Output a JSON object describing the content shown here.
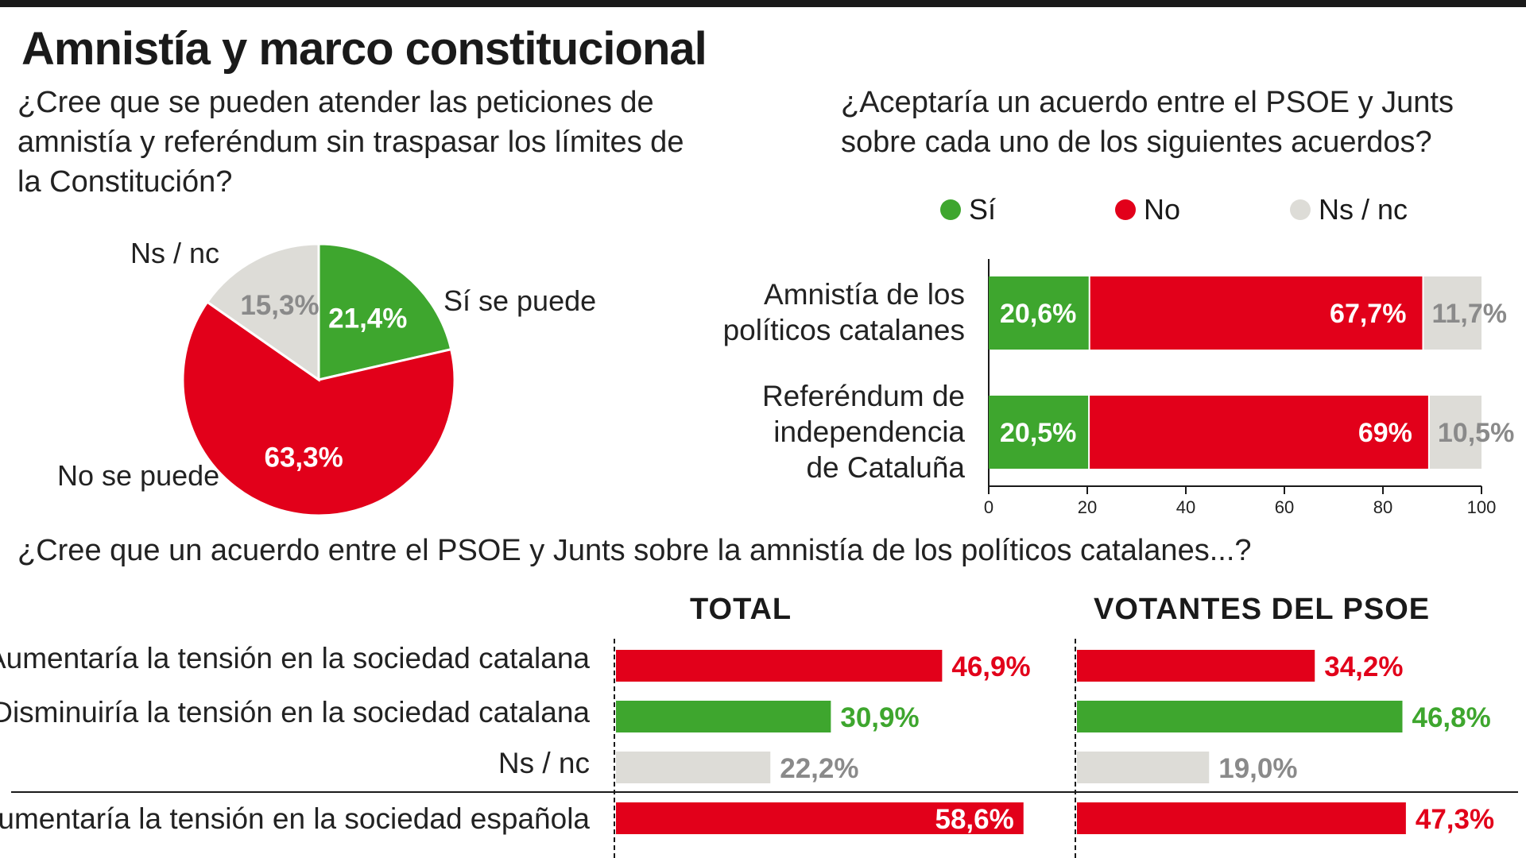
{
  "title": "Amnistía y marco constitucional",
  "colors": {
    "si": "#3ea62e",
    "no": "#e2001a",
    "nsnc": "#dddcd7",
    "nsnc_text": "#8a8a8a",
    "dark": "#1a1a1a"
  },
  "pie": {
    "question": "¿Cree que se pueden atender las peticiones de amnistía y referéndum sin traspasar los límites de la Constitución?",
    "labels": {
      "si": "Sí se puede",
      "no": "No se puede",
      "nsnc": "Ns / nc"
    }
  },
  "agreement": {
    "question": "¿Aceptaría un acuerdo entre el PSOE y Junts sobre cada uno de los siguientes acuerdos?",
    "legend": [
      "Sí",
      "No",
      "Ns / nc"
    ],
    "row_labels": [
      [
        "Amnistía de los",
        "políticos catalanes"
      ],
      [
        "Referéndum de",
        "independencia",
        "de Cataluña"
      ]
    ]
  },
  "tension": {
    "question": "¿Cree que un acuerdo entre el PSOE y Junts sobre la amnistía de los políticos catalanes...?",
    "headers": [
      "TOTAL",
      "VOTANTES DEL PSOE"
    ],
    "row_labels": [
      "Aumentaría la tensión en la sociedad catalana",
      "Disminuiría la tensión en la sociedad catalana",
      "Ns / nc",
      "Aumentaría la tensión en la sociedad española"
    ]
  },
  "chart_data": [
    {
      "type": "pie",
      "categories": [
        "Sí se puede",
        "No se puede",
        "Ns / nc"
      ],
      "values": [
        21.4,
        63.3,
        15.3
      ],
      "value_labels": [
        "21,4%",
        "63,3%",
        "15,3%"
      ]
    },
    {
      "type": "bar",
      "orientation": "horizontal",
      "stacked": true,
      "categories": [
        "Amnistía de los políticos catalanes",
        "Referéndum de independencia de Cataluña"
      ],
      "series": [
        {
          "name": "Sí",
          "values": [
            20.6,
            20.5
          ],
          "value_labels": [
            "20,6%",
            "20,5%"
          ]
        },
        {
          "name": "No",
          "values": [
            67.7,
            69
          ],
          "value_labels": [
            "67,7%",
            "69%"
          ]
        },
        {
          "name": "Ns / nc",
          "values": [
            11.7,
            10.5
          ],
          "value_labels": [
            "11,7%",
            "10,5%"
          ]
        }
      ],
      "xlim": [
        0,
        100
      ],
      "xticks": [
        "0",
        "20",
        "40",
        "60",
        "80",
        "100"
      ]
    },
    {
      "type": "bar",
      "orientation": "horizontal",
      "categories": [
        "Aumentaría la tensión en la sociedad catalana",
        "Disminuiría la tensión en la sociedad catalana",
        "Ns / nc",
        "Aumentaría la tensión en la sociedad española"
      ],
      "series": [
        {
          "name": "TOTAL",
          "values": [
            46.9,
            30.9,
            22.2,
            58.6
          ],
          "value_labels": [
            "46,9%",
            "30,9%",
            "22,2%",
            "58,6%"
          ]
        },
        {
          "name": "VOTANTES DEL PSOE",
          "values": [
            34.2,
            46.8,
            19.0,
            47.3
          ],
          "value_labels": [
            "34,2%",
            "46,8%",
            "19,0%",
            "47,3%"
          ]
        }
      ],
      "bar_colors": [
        "no",
        "si",
        "nsnc",
        "no"
      ]
    }
  ]
}
